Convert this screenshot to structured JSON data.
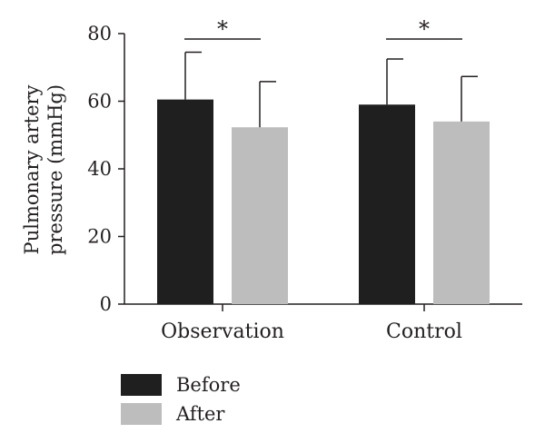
{
  "chart_data": {
    "type": "bar",
    "ylabel_lines": [
      "Pulmonary artery",
      "pressure (mmHg)"
    ],
    "ylim": [
      0,
      80
    ],
    "yticks": [
      0,
      20,
      40,
      60,
      80
    ],
    "categories": [
      "Observation",
      "Control"
    ],
    "series": [
      {
        "name": "Before",
        "color": "#1f1f1f",
        "values": [
          60.5,
          59
        ],
        "errors": [
          14,
          13.5
        ]
      },
      {
        "name": "After",
        "color": "#bdbdbd",
        "values": [
          52.3,
          54
        ],
        "errors": [
          13.5,
          13.3
        ]
      }
    ],
    "significance": [
      "*",
      "*"
    ],
    "legend_position": "bottom-left",
    "grid": false
  }
}
